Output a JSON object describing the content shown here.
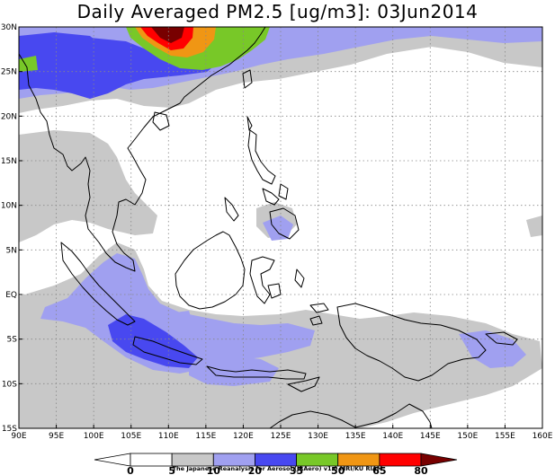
{
  "title": "Daily Averaged PM2.5 [ug/m3]: 03Jun2014",
  "credit": "The Japanese Reanalysis for Aerosol (JRAero) v1.0 MRI/KU RIAM",
  "map": {
    "lon_range": [
      90,
      160
    ],
    "lat_range": [
      -15,
      30
    ],
    "lon_ticks": [
      {
        "value": 90,
        "label": "90E"
      },
      {
        "value": 95,
        "label": "95E"
      },
      {
        "value": 100,
        "label": "100E"
      },
      {
        "value": 105,
        "label": "105E"
      },
      {
        "value": 110,
        "label": "110E"
      },
      {
        "value": 115,
        "label": "115E"
      },
      {
        "value": 120,
        "label": "120E"
      },
      {
        "value": 125,
        "label": "125E"
      },
      {
        "value": 130,
        "label": "130E"
      },
      {
        "value": 135,
        "label": "135E"
      },
      {
        "value": 140,
        "label": "140E"
      },
      {
        "value": 145,
        "label": "145E"
      },
      {
        "value": 150,
        "label": "150E"
      },
      {
        "value": 155,
        "label": "155E"
      },
      {
        "value": 160,
        "label": "160E"
      }
    ],
    "lat_ticks": [
      {
        "value": 30,
        "label": "30N"
      },
      {
        "value": 25,
        "label": "25N"
      },
      {
        "value": 20,
        "label": "20N"
      },
      {
        "value": 15,
        "label": "15N"
      },
      {
        "value": 10,
        "label": "10N"
      },
      {
        "value": 5,
        "label": "5N"
      },
      {
        "value": 0,
        "label": "EQ"
      },
      {
        "value": -5,
        "label": "5S"
      },
      {
        "value": -10,
        "label": "10S"
      },
      {
        "value": -15,
        "label": "15S"
      }
    ]
  },
  "colorbar": {
    "levels": [
      0,
      5,
      10,
      20,
      35,
      50,
      65,
      80
    ],
    "labels": [
      "0",
      "5",
      "10",
      "20",
      "35",
      "50",
      "65",
      "80"
    ],
    "colors": [
      "#ffffff",
      "#c8c8c8",
      "#a0a0f0",
      "#4848f0",
      "#78c828",
      "#f09614",
      "#ff0000",
      "#780000"
    ]
  },
  "field_colors": {
    "gray": "#c8c8c8",
    "lightblue": "#a0a0f0",
    "blue": "#4848f0",
    "green": "#78c828",
    "orange": "#f09614",
    "red": "#ff0000",
    "darkred": "#780000"
  }
}
